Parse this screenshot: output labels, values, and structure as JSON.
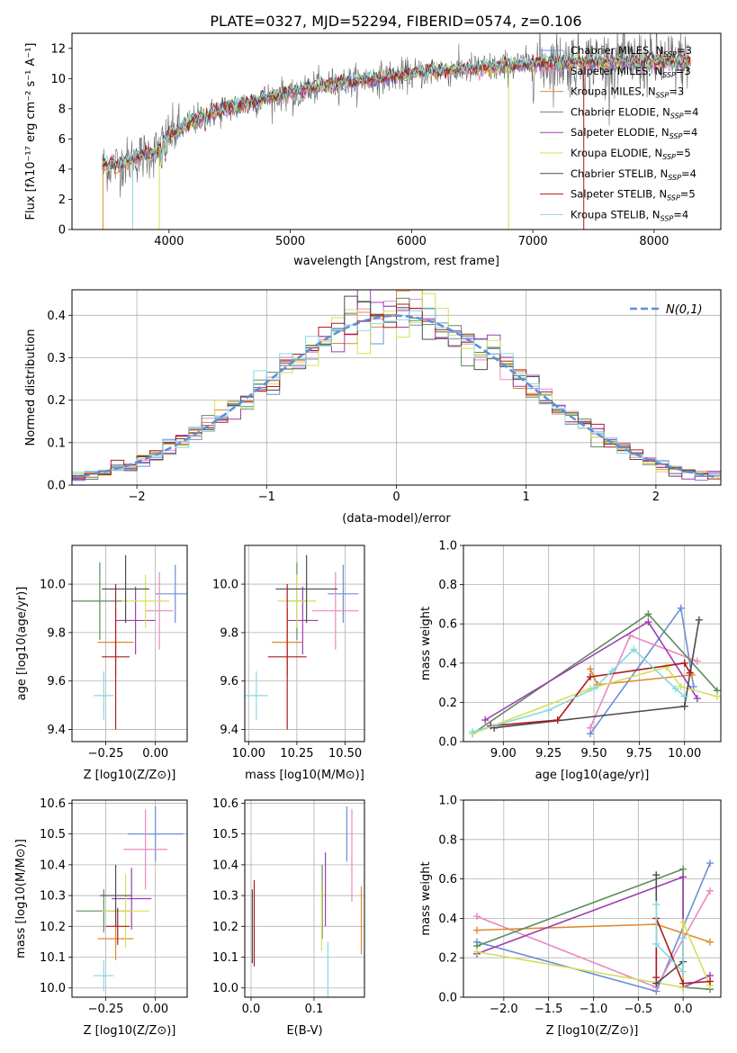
{
  "chart_data": [
    {
      "type": "line",
      "title": "PLATE=0327, MJD=52294, FIBERID=0574, z=0.106",
      "xlabel": "wavelength [Angstrom, rest frame]",
      "ylabel": "Flux [fλ10⁻¹⁷ erg cm⁻² s⁻¹ A⁻¹]",
      "xlim": [
        3200,
        8550
      ],
      "ylim": [
        0,
        13
      ],
      "xticks": [
        4000,
        5000,
        6000,
        7000,
        8000
      ],
      "yticks": [
        0,
        2,
        4,
        6,
        8,
        10,
        12
      ],
      "legend_position": "top-right",
      "data_color": "#666666",
      "continuum_points": [
        [
          3450,
          4.2
        ],
        [
          3600,
          4.3
        ],
        [
          3750,
          4.8
        ],
        [
          3900,
          5.2
        ],
        [
          4000,
          6.2
        ],
        [
          4200,
          7.2
        ],
        [
          4400,
          7.8
        ],
        [
          4600,
          8.3
        ],
        [
          4800,
          8.7
        ],
        [
          5000,
          9.1
        ],
        [
          5200,
          9.4
        ],
        [
          5400,
          9.7
        ],
        [
          5600,
          9.9
        ],
        [
          5800,
          10.1
        ],
        [
          6000,
          10.3
        ],
        [
          6200,
          10.5
        ],
        [
          6400,
          10.6
        ],
        [
          6600,
          10.7
        ],
        [
          6800,
          10.8
        ],
        [
          7000,
          11.0
        ],
        [
          7200,
          11.1
        ]
      ],
      "series": [
        {
          "name": "Chabrier MILES, N_SSP=3",
          "label_main": "Chabrier MILES, N",
          "label_sub": "SSP",
          "label_tail": "=3",
          "color": "#6a8fd8"
        },
        {
          "name": "Salpeter MILES, N_SSP=3",
          "label_main": "Salpeter MILES, N",
          "label_sub": "SSP",
          "label_tail": "=3",
          "color": "#e88ac0"
        },
        {
          "name": "Kroupa MILES, N_SSP=3",
          "label_main": "Kroupa MILES, N",
          "label_sub": "SSP",
          "label_tail": "=3",
          "color": "#e08a2e"
        },
        {
          "name": "Chabrier ELODIE, N_SSP=4",
          "label_main": "Chabrier ELODIE, N",
          "label_sub": "SSP",
          "label_tail": "=4",
          "color": "#5e8b5e"
        },
        {
          "name": "Salpeter ELODIE, N_SSP=4",
          "label_main": "Salpeter ELODIE, N",
          "label_sub": "SSP",
          "label_tail": "=4",
          "color": "#9b3fb0"
        },
        {
          "name": "Kroupa ELODIE, N_SSP=5",
          "label_main": "Kroupa ELODIE, N",
          "label_sub": "SSP",
          "label_tail": "=5",
          "color": "#d4e05a"
        },
        {
          "name": "Chabrier STELIB, N_SSP=4",
          "label_main": "Chabrier STELIB, N",
          "label_sub": "SSP",
          "label_tail": "=4",
          "color": "#4d4d4d"
        },
        {
          "name": "Salpeter STELIB, N_SSP=5",
          "label_main": "Salpeter STELIB, N",
          "label_sub": "SSP",
          "label_tail": "=5",
          "color": "#b01c1c"
        },
        {
          "name": "Kroupa STELIB, N_SSP=4",
          "label_main": "Kroupa STELIB, N",
          "label_sub": "SSP",
          "label_tail": "=4",
          "color": "#86d9e0"
        }
      ]
    },
    {
      "type": "histogram",
      "xlabel": "(data-model)/error",
      "ylabel": "Normed distribution",
      "xlim": [
        -2.5,
        2.5
      ],
      "ylim": [
        0,
        0.46
      ],
      "xticks": [
        -2,
        -1,
        0,
        1,
        2
      ],
      "yticks": [
        0.0,
        0.1,
        0.2,
        0.3,
        0.4
      ],
      "grid": true,
      "legend_position": "top-right",
      "reference_curve": {
        "name": "N(0,1)",
        "color": "#5b8fd6",
        "style": "dashed"
      },
      "bin_width": 0.1
    },
    {
      "type": "scatter",
      "style": "error-cross",
      "xlabel": "Z [log10(Z/Z⊙)]",
      "ylabel": "age [log10(age/yr)]",
      "xlim": [
        -0.42,
        0.16
      ],
      "ylim": [
        9.35,
        10.16
      ],
      "xticks": [
        -0.25,
        0.0
      ],
      "yticks": [
        9.4,
        9.6,
        9.8,
        10.0
      ],
      "grid": true,
      "points": [
        {
          "x": 0.1,
          "xerr": 0.1,
          "y": 9.96,
          "yerr": 0.12,
          "color": "#6a8fd8"
        },
        {
          "x": 0.02,
          "xerr": 0.07,
          "y": 9.89,
          "yerr": 0.16,
          "color": "#e88ac0"
        },
        {
          "x": -0.2,
          "xerr": 0.09,
          "y": 9.76,
          "yerr": 0.14,
          "color": "#e08a2e"
        },
        {
          "x": -0.28,
          "xerr": 0.14,
          "y": 9.93,
          "yerr": 0.16,
          "color": "#5e8b5e"
        },
        {
          "x": -0.1,
          "xerr": 0.1,
          "y": 9.85,
          "yerr": 0.14,
          "color": "#9b3fb0"
        },
        {
          "x": -0.05,
          "xerr": 0.12,
          "y": 9.93,
          "yerr": 0.11,
          "color": "#d4e05a"
        },
        {
          "x": -0.15,
          "xerr": 0.12,
          "y": 9.98,
          "yerr": 0.14,
          "color": "#4d4d4d"
        },
        {
          "x": -0.2,
          "xerr": 0.07,
          "y": 9.7,
          "yerr": 0.3,
          "color": "#b01c1c"
        },
        {
          "x": -0.26,
          "xerr": 0.05,
          "y": 9.54,
          "yerr": 0.1,
          "color": "#86d9e0"
        }
      ]
    },
    {
      "type": "scatter",
      "style": "error-cross",
      "xlabel": "mass [log10(M/M⊙)]",
      "ylabel": "",
      "xlim": [
        9.98,
        10.6
      ],
      "ylim": [
        9.35,
        10.16
      ],
      "xticks": [
        10.0,
        10.25,
        10.5
      ],
      "yticks": [
        9.4,
        9.6,
        9.8,
        10.0
      ],
      "grid": true,
      "points": [
        {
          "x": 10.49,
          "xerr": 0.08,
          "y": 9.96,
          "yerr": 0.12,
          "color": "#6a8fd8"
        },
        {
          "x": 10.45,
          "xerr": 0.12,
          "y": 9.89,
          "yerr": 0.16,
          "color": "#e88ac0"
        },
        {
          "x": 10.2,
          "xerr": 0.08,
          "y": 9.76,
          "yerr": 0.14,
          "color": "#e08a2e"
        },
        {
          "x": 10.25,
          "xerr": 0.05,
          "y": 9.93,
          "yerr": 0.16,
          "color": "#5e8b5e"
        },
        {
          "x": 10.28,
          "xerr": 0.08,
          "y": 9.85,
          "yerr": 0.14,
          "color": "#9b3fb0"
        },
        {
          "x": 10.25,
          "xerr": 0.1,
          "y": 9.93,
          "yerr": 0.11,
          "color": "#d4e05a"
        },
        {
          "x": 10.3,
          "xerr": 0.16,
          "y": 9.98,
          "yerr": 0.14,
          "color": "#4d4d4d"
        },
        {
          "x": 10.2,
          "xerr": 0.1,
          "y": 9.7,
          "yerr": 0.3,
          "color": "#b01c1c"
        },
        {
          "x": 10.04,
          "xerr": 0.06,
          "y": 9.54,
          "yerr": 0.1,
          "color": "#86d9e0"
        }
      ]
    },
    {
      "type": "line",
      "style": "connected-markers",
      "xlabel": "age [log10(age/yr)]",
      "ylabel": "mass weight",
      "xlim": [
        8.78,
        10.2
      ],
      "ylim": [
        0,
        1
      ],
      "xticks": [
        9.0,
        9.25,
        9.5,
        9.75,
        10.0
      ],
      "yticks": [
        0.0,
        0.2,
        0.4,
        0.6,
        0.8,
        1.0
      ],
      "grid": true,
      "series": [
        {
          "color": "#6a8fd8",
          "points": [
            [
              9.48,
              0.04
            ],
            [
              9.98,
              0.68
            ],
            [
              10.05,
              0.28
            ]
          ]
        },
        {
          "color": "#e88ac0",
          "points": [
            [
              9.48,
              0.07
            ],
            [
              9.7,
              0.54
            ],
            [
              10.07,
              0.41
            ]
          ]
        },
        {
          "color": "#e08a2e",
          "points": [
            [
              9.48,
              0.37
            ],
            [
              9.52,
              0.29
            ],
            [
              10.04,
              0.34
            ]
          ]
        },
        {
          "color": "#5e8b5e",
          "points": [
            [
              8.83,
              0.04
            ],
            [
              9.8,
              0.65
            ],
            [
              10.18,
              0.26
            ]
          ]
        },
        {
          "color": "#9b3fb0",
          "points": [
            [
              8.9,
              0.11
            ],
            [
              9.8,
              0.61
            ],
            [
              10.07,
              0.22
            ]
          ]
        },
        {
          "color": "#d4e05a",
          "points": [
            [
              8.83,
              0.04
            ],
            [
              9.48,
              0.27
            ],
            [
              9.9,
              0.38
            ],
            [
              9.98,
              0.28
            ],
            [
              10.18,
              0.23
            ]
          ]
        },
        {
          "color": "#4d4d4d",
          "points": [
            [
              8.95,
              0.07
            ],
            [
              10.0,
              0.18
            ],
            [
              10.08,
              0.62
            ]
          ]
        },
        {
          "color": "#b01c1c",
          "points": [
            [
              8.93,
              0.08
            ],
            [
              9.3,
              0.11
            ],
            [
              9.48,
              0.33
            ],
            [
              10.0,
              0.4
            ],
            [
              10.03,
              0.35
            ]
          ]
        },
        {
          "color": "#86d9e0",
          "points": [
            [
              8.83,
              0.05
            ],
            [
              9.25,
              0.16
            ],
            [
              9.5,
              0.27
            ],
            [
              9.6,
              0.36
            ],
            [
              9.72,
              0.47
            ],
            [
              9.95,
              0.27
            ],
            [
              10.0,
              0.23
            ]
          ]
        }
      ]
    },
    {
      "type": "scatter",
      "style": "error-cross",
      "xlabel": "Z [log10(Z/Z⊙)]",
      "ylabel": "mass [log10(M/M⊙)]",
      "xlim": [
        -0.42,
        0.16
      ],
      "ylim": [
        9.97,
        10.61
      ],
      "xticks": [
        -0.25,
        0.0
      ],
      "yticks": [
        10.0,
        10.1,
        10.2,
        10.3,
        10.4,
        10.5,
        10.6
      ],
      "grid": true,
      "points": [
        {
          "x": 0.0,
          "xerr": 0.14,
          "y": 10.5,
          "yerr": 0.09,
          "color": "#6a8fd8"
        },
        {
          "x": -0.05,
          "xerr": 0.11,
          "y": 10.45,
          "yerr": 0.13,
          "color": "#e88ac0"
        },
        {
          "x": -0.2,
          "xerr": 0.09,
          "y": 10.16,
          "yerr": 0.07,
          "color": "#e08a2e"
        },
        {
          "x": -0.26,
          "xerr": 0.14,
          "y": 10.25,
          "yerr": 0.07,
          "color": "#5e8b5e"
        },
        {
          "x": -0.12,
          "xerr": 0.1,
          "y": 10.29,
          "yerr": 0.1,
          "color": "#9b3fb0"
        },
        {
          "x": -0.15,
          "xerr": 0.12,
          "y": 10.25,
          "yerr": 0.12,
          "color": "#d4e05a"
        },
        {
          "x": -0.2,
          "xerr": 0.08,
          "y": 10.3,
          "yerr": 0.1,
          "color": "#4d4d4d"
        },
        {
          "x": -0.19,
          "xerr": 0.06,
          "y": 10.2,
          "yerr": 0.06,
          "color": "#b01c1c"
        },
        {
          "x": -0.26,
          "xerr": 0.05,
          "y": 10.04,
          "yerr": 0.05,
          "color": "#86d9e0"
        }
      ]
    },
    {
      "type": "scatter",
      "style": "vertical-error",
      "xlabel": "E(B-V)",
      "ylabel": "",
      "xlim": [
        -0.01,
        0.18
      ],
      "ylim": [
        9.97,
        10.61
      ],
      "xticks": [
        0.0,
        0.1
      ],
      "yticks": [
        10.0,
        10.1,
        10.2,
        10.3,
        10.4,
        10.5,
        10.6
      ],
      "grid": true,
      "points": [
        {
          "x": 0.152,
          "y": 10.5,
          "yerr": 0.09,
          "color": "#6a8fd8"
        },
        {
          "x": 0.16,
          "y": 10.43,
          "yerr": 0.15,
          "color": "#e88ac0"
        },
        {
          "x": 0.175,
          "y": 10.22,
          "yerr": 0.11,
          "color": "#e08a2e"
        },
        {
          "x": 0.113,
          "y": 10.28,
          "yerr": 0.12,
          "color": "#5e8b5e"
        },
        {
          "x": 0.118,
          "y": 10.32,
          "yerr": 0.12,
          "color": "#9b3fb0"
        },
        {
          "x": 0.112,
          "y": 10.23,
          "yerr": 0.11,
          "color": "#d4e05a"
        },
        {
          "x": 0.002,
          "y": 10.2,
          "yerr": 0.12,
          "color": "#4d4d4d"
        },
        {
          "x": 0.005,
          "y": 10.21,
          "yerr": 0.14,
          "color": "#b01c1c"
        },
        {
          "x": 0.122,
          "y": 10.06,
          "yerr": 0.09,
          "color": "#86d9e0"
        }
      ]
    },
    {
      "type": "line",
      "style": "connected-markers",
      "xlabel": "Z [log10(Z/Z⊙)]",
      "ylabel": "mass weight",
      "xlim": [
        -2.45,
        0.42
      ],
      "ylim": [
        0,
        1
      ],
      "xticks": [
        -2.0,
        -1.5,
        -1.0,
        -0.5,
        0.0
      ],
      "yticks": [
        0.0,
        0.2,
        0.4,
        0.6,
        0.8,
        1.0
      ],
      "grid": true,
      "series": [
        {
          "color": "#6a8fd8",
          "points": [
            [
              -2.3,
              0.28
            ],
            [
              -0.3,
              0.03
            ],
            [
              0.3,
              0.68
            ]
          ]
        },
        {
          "color": "#e88ac0",
          "points": [
            [
              -2.3,
              0.41
            ],
            [
              -0.3,
              0.05
            ],
            [
              0.3,
              0.54
            ]
          ]
        },
        {
          "color": "#e08a2e",
          "points": [
            [
              -2.3,
              0.34
            ],
            [
              -0.3,
              0.37
            ],
            [
              0.3,
              0.28
            ]
          ]
        },
        {
          "color": "#5e8b5e",
          "points": [
            [
              -2.3,
              0.26
            ],
            [
              0.0,
              0.65
            ],
            [
              0.0,
              0.05
            ],
            [
              0.3,
              0.04
            ]
          ]
        },
        {
          "color": "#9b3fb0",
          "points": [
            [
              -2.3,
              0.22
            ],
            [
              0.0,
              0.61
            ],
            [
              0.0,
              0.05
            ],
            [
              0.3,
              0.11
            ]
          ]
        },
        {
          "color": "#d4e05a",
          "points": [
            [
              -2.3,
              0.23
            ],
            [
              0.0,
              0.05
            ],
            [
              0.0,
              0.38
            ],
            [
              0.3,
              0.06
            ]
          ]
        },
        {
          "color": "#4d4d4d",
          "points": [
            [
              -0.3,
              0.62
            ],
            [
              -0.3,
              0.07
            ],
            [
              0.0,
              0.18
            ]
          ]
        },
        {
          "color": "#b01c1c",
          "points": [
            [
              -0.3,
              0.1
            ],
            [
              -0.3,
              0.4
            ],
            [
              0.0,
              0.07
            ],
            [
              0.3,
              0.08
            ]
          ]
        },
        {
          "color": "#86d9e0",
          "points": [
            [
              -0.3,
              0.47
            ],
            [
              -0.3,
              0.27
            ],
            [
              0.0,
              0.13
            ],
            [
              0.0,
              0.3
            ]
          ]
        }
      ]
    }
  ]
}
